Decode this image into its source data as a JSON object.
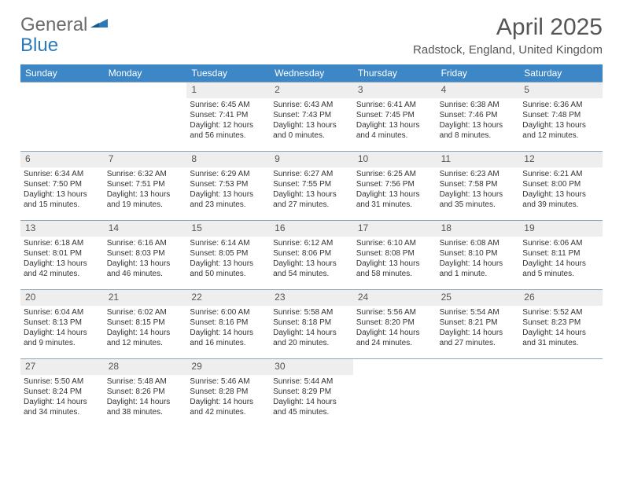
{
  "brand": {
    "gray": "General",
    "blue": "Blue"
  },
  "title": "April 2025",
  "location": "Radstock, England, United Kingdom",
  "colors": {
    "header_bg": "#3d87c7",
    "header_text": "#ffffff",
    "cell_border": "#8aa8c0",
    "daynum_bg": "#eeeeee",
    "text": "#333333",
    "gray_text": "#6b6b6b",
    "blue_text": "#2a7ab9"
  },
  "day_names": [
    "Sunday",
    "Monday",
    "Tuesday",
    "Wednesday",
    "Thursday",
    "Friday",
    "Saturday"
  ],
  "weeks": [
    [
      null,
      null,
      {
        "n": "1",
        "sr": "Sunrise: 6:45 AM",
        "ss": "Sunset: 7:41 PM",
        "d1": "Daylight: 12 hours",
        "d2": "and 56 minutes."
      },
      {
        "n": "2",
        "sr": "Sunrise: 6:43 AM",
        "ss": "Sunset: 7:43 PM",
        "d1": "Daylight: 13 hours",
        "d2": "and 0 minutes."
      },
      {
        "n": "3",
        "sr": "Sunrise: 6:41 AM",
        "ss": "Sunset: 7:45 PM",
        "d1": "Daylight: 13 hours",
        "d2": "and 4 minutes."
      },
      {
        "n": "4",
        "sr": "Sunrise: 6:38 AM",
        "ss": "Sunset: 7:46 PM",
        "d1": "Daylight: 13 hours",
        "d2": "and 8 minutes."
      },
      {
        "n": "5",
        "sr": "Sunrise: 6:36 AM",
        "ss": "Sunset: 7:48 PM",
        "d1": "Daylight: 13 hours",
        "d2": "and 12 minutes."
      }
    ],
    [
      {
        "n": "6",
        "sr": "Sunrise: 6:34 AM",
        "ss": "Sunset: 7:50 PM",
        "d1": "Daylight: 13 hours",
        "d2": "and 15 minutes."
      },
      {
        "n": "7",
        "sr": "Sunrise: 6:32 AM",
        "ss": "Sunset: 7:51 PM",
        "d1": "Daylight: 13 hours",
        "d2": "and 19 minutes."
      },
      {
        "n": "8",
        "sr": "Sunrise: 6:29 AM",
        "ss": "Sunset: 7:53 PM",
        "d1": "Daylight: 13 hours",
        "d2": "and 23 minutes."
      },
      {
        "n": "9",
        "sr": "Sunrise: 6:27 AM",
        "ss": "Sunset: 7:55 PM",
        "d1": "Daylight: 13 hours",
        "d2": "and 27 minutes."
      },
      {
        "n": "10",
        "sr": "Sunrise: 6:25 AM",
        "ss": "Sunset: 7:56 PM",
        "d1": "Daylight: 13 hours",
        "d2": "and 31 minutes."
      },
      {
        "n": "11",
        "sr": "Sunrise: 6:23 AM",
        "ss": "Sunset: 7:58 PM",
        "d1": "Daylight: 13 hours",
        "d2": "and 35 minutes."
      },
      {
        "n": "12",
        "sr": "Sunrise: 6:21 AM",
        "ss": "Sunset: 8:00 PM",
        "d1": "Daylight: 13 hours",
        "d2": "and 39 minutes."
      }
    ],
    [
      {
        "n": "13",
        "sr": "Sunrise: 6:18 AM",
        "ss": "Sunset: 8:01 PM",
        "d1": "Daylight: 13 hours",
        "d2": "and 42 minutes."
      },
      {
        "n": "14",
        "sr": "Sunrise: 6:16 AM",
        "ss": "Sunset: 8:03 PM",
        "d1": "Daylight: 13 hours",
        "d2": "and 46 minutes."
      },
      {
        "n": "15",
        "sr": "Sunrise: 6:14 AM",
        "ss": "Sunset: 8:05 PM",
        "d1": "Daylight: 13 hours",
        "d2": "and 50 minutes."
      },
      {
        "n": "16",
        "sr": "Sunrise: 6:12 AM",
        "ss": "Sunset: 8:06 PM",
        "d1": "Daylight: 13 hours",
        "d2": "and 54 minutes."
      },
      {
        "n": "17",
        "sr": "Sunrise: 6:10 AM",
        "ss": "Sunset: 8:08 PM",
        "d1": "Daylight: 13 hours",
        "d2": "and 58 minutes."
      },
      {
        "n": "18",
        "sr": "Sunrise: 6:08 AM",
        "ss": "Sunset: 8:10 PM",
        "d1": "Daylight: 14 hours",
        "d2": "and 1 minute."
      },
      {
        "n": "19",
        "sr": "Sunrise: 6:06 AM",
        "ss": "Sunset: 8:11 PM",
        "d1": "Daylight: 14 hours",
        "d2": "and 5 minutes."
      }
    ],
    [
      {
        "n": "20",
        "sr": "Sunrise: 6:04 AM",
        "ss": "Sunset: 8:13 PM",
        "d1": "Daylight: 14 hours",
        "d2": "and 9 minutes."
      },
      {
        "n": "21",
        "sr": "Sunrise: 6:02 AM",
        "ss": "Sunset: 8:15 PM",
        "d1": "Daylight: 14 hours",
        "d2": "and 12 minutes."
      },
      {
        "n": "22",
        "sr": "Sunrise: 6:00 AM",
        "ss": "Sunset: 8:16 PM",
        "d1": "Daylight: 14 hours",
        "d2": "and 16 minutes."
      },
      {
        "n": "23",
        "sr": "Sunrise: 5:58 AM",
        "ss": "Sunset: 8:18 PM",
        "d1": "Daylight: 14 hours",
        "d2": "and 20 minutes."
      },
      {
        "n": "24",
        "sr": "Sunrise: 5:56 AM",
        "ss": "Sunset: 8:20 PM",
        "d1": "Daylight: 14 hours",
        "d2": "and 24 minutes."
      },
      {
        "n": "25",
        "sr": "Sunrise: 5:54 AM",
        "ss": "Sunset: 8:21 PM",
        "d1": "Daylight: 14 hours",
        "d2": "and 27 minutes."
      },
      {
        "n": "26",
        "sr": "Sunrise: 5:52 AM",
        "ss": "Sunset: 8:23 PM",
        "d1": "Daylight: 14 hours",
        "d2": "and 31 minutes."
      }
    ],
    [
      {
        "n": "27",
        "sr": "Sunrise: 5:50 AM",
        "ss": "Sunset: 8:24 PM",
        "d1": "Daylight: 14 hours",
        "d2": "and 34 minutes."
      },
      {
        "n": "28",
        "sr": "Sunrise: 5:48 AM",
        "ss": "Sunset: 8:26 PM",
        "d1": "Daylight: 14 hours",
        "d2": "and 38 minutes."
      },
      {
        "n": "29",
        "sr": "Sunrise: 5:46 AM",
        "ss": "Sunset: 8:28 PM",
        "d1": "Daylight: 14 hours",
        "d2": "and 42 minutes."
      },
      {
        "n": "30",
        "sr": "Sunrise: 5:44 AM",
        "ss": "Sunset: 8:29 PM",
        "d1": "Daylight: 14 hours",
        "d2": "and 45 minutes."
      },
      null,
      null,
      null
    ]
  ]
}
